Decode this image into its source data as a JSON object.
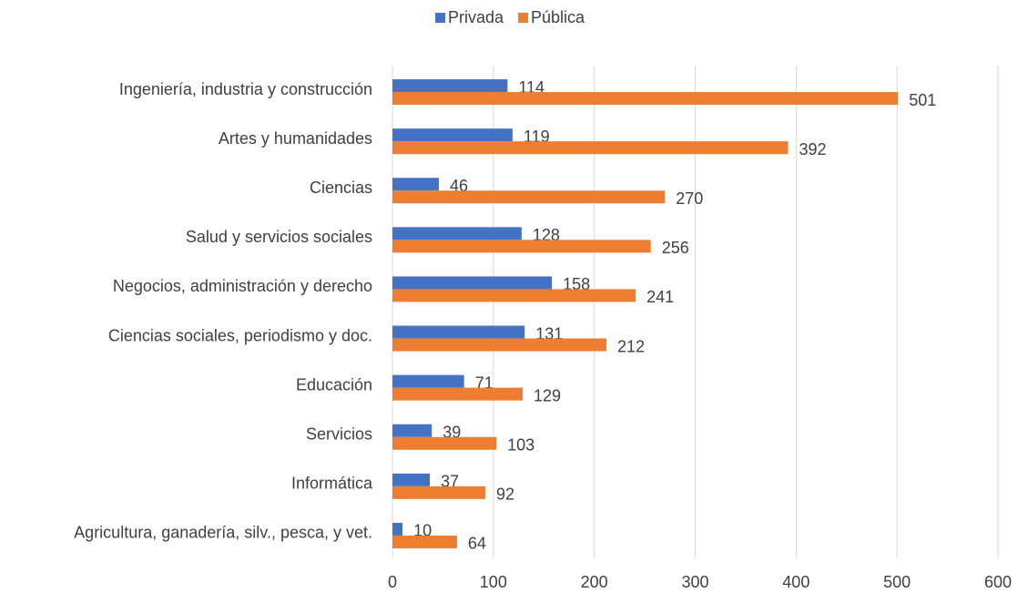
{
  "chart_data": {
    "type": "bar",
    "orientation": "horizontal",
    "categories": [
      "Ingeniería, industria y construcción",
      "Artes y humanidades",
      "Ciencias",
      "Salud y servicios sociales",
      "Negocios, administración y derecho",
      "Ciencias sociales, periodismo y doc.",
      "Educación",
      "Servicios",
      "Informática",
      "Agricultura, ganadería, silv., pesca, y vet."
    ],
    "series": [
      {
        "name": "Privada",
        "color": "#4472c4",
        "values": [
          114,
          119,
          46,
          128,
          158,
          131,
          71,
          39,
          37,
          10
        ]
      },
      {
        "name": "Pública",
        "color": "#ed7d31",
        "values": [
          501,
          392,
          270,
          256,
          241,
          212,
          129,
          103,
          92,
          64
        ]
      }
    ],
    "xlim": [
      0,
      600
    ],
    "xticks": [
      0,
      100,
      200,
      300,
      400,
      500,
      600
    ],
    "grid": true,
    "legend": "top"
  }
}
